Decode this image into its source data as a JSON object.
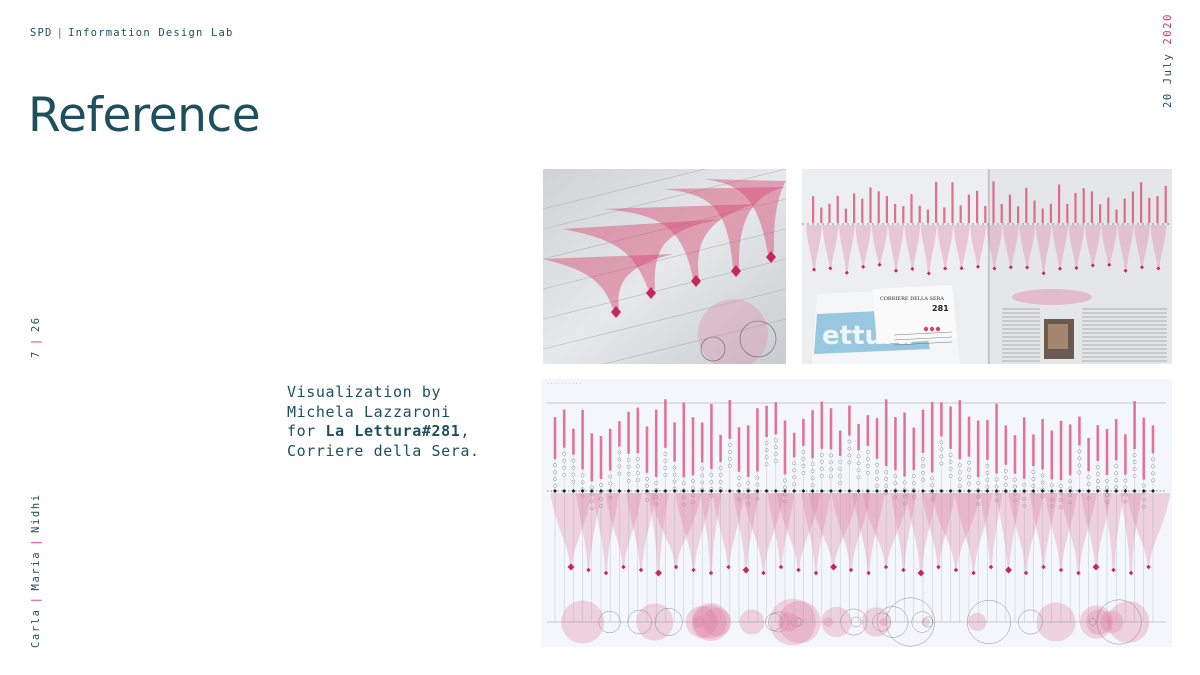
{
  "header": {
    "org": "SPD",
    "separator": "|",
    "lab": "Information Design Lab"
  },
  "title": "Reference",
  "date": {
    "day_month": "20 July",
    "year": "2020"
  },
  "page": {
    "current": "7",
    "separator": "|",
    "total": "26"
  },
  "authors": {
    "a1": "Carla",
    "a2": "Maria",
    "a3": "Nidhi",
    "separator": "|"
  },
  "caption": {
    "line1": "Visualization by",
    "line2": "Michela Lazzaroni",
    "line3_prefix": "for ",
    "line3_bold": "La Lettura#281",
    "line3_suffix": ",",
    "line4": "Corriere della Sera."
  },
  "images": {
    "photo1": "Close-up photo of printed pink flow visualization",
    "photo2": "Photo of newspaper spread with visualization",
    "photo3": "Full visualization"
  },
  "newspaper_text": {
    "masthead": "CORRIERE DELLA SERA",
    "issue": "281",
    "brand": "ettura"
  },
  "colors": {
    "teal": "#1d4f5e",
    "pink": "#d6336c",
    "viz_pink": "#e8789c"
  }
}
